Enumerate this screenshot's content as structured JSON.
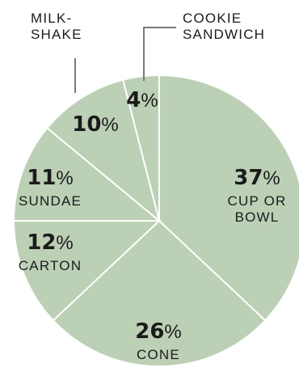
{
  "chart_data": {
    "type": "pie",
    "slice_color": "#bcd0b5",
    "separator_color": "#ffffff",
    "slices": [
      {
        "category": "CUP OR BOWL",
        "label_lines": [
          "CUP OR",
          "BOWL"
        ],
        "value": 37,
        "pct_number": "37",
        "pct_sign": "%"
      },
      {
        "category": "CONE",
        "label_lines": [
          "CONE"
        ],
        "value": 26,
        "pct_number": "26",
        "pct_sign": "%"
      },
      {
        "category": "CARTON",
        "label_lines": [
          "CARTON"
        ],
        "value": 12,
        "pct_number": "12",
        "pct_sign": "%"
      },
      {
        "category": "SUNDAE",
        "label_lines": [
          "SUNDAE"
        ],
        "value": 11,
        "pct_number": "11",
        "pct_sign": "%"
      },
      {
        "category": "MILK-SHAKE",
        "label_lines": [
          "MILK-",
          "SHAKE"
        ],
        "value": 10,
        "pct_number": "10",
        "pct_sign": "%"
      },
      {
        "category": "COOKIE SANDWICH",
        "label_lines": [
          "COOKIE",
          "SANDWICH"
        ],
        "value": 4,
        "pct_number": "4",
        "pct_sign": "%"
      }
    ]
  }
}
